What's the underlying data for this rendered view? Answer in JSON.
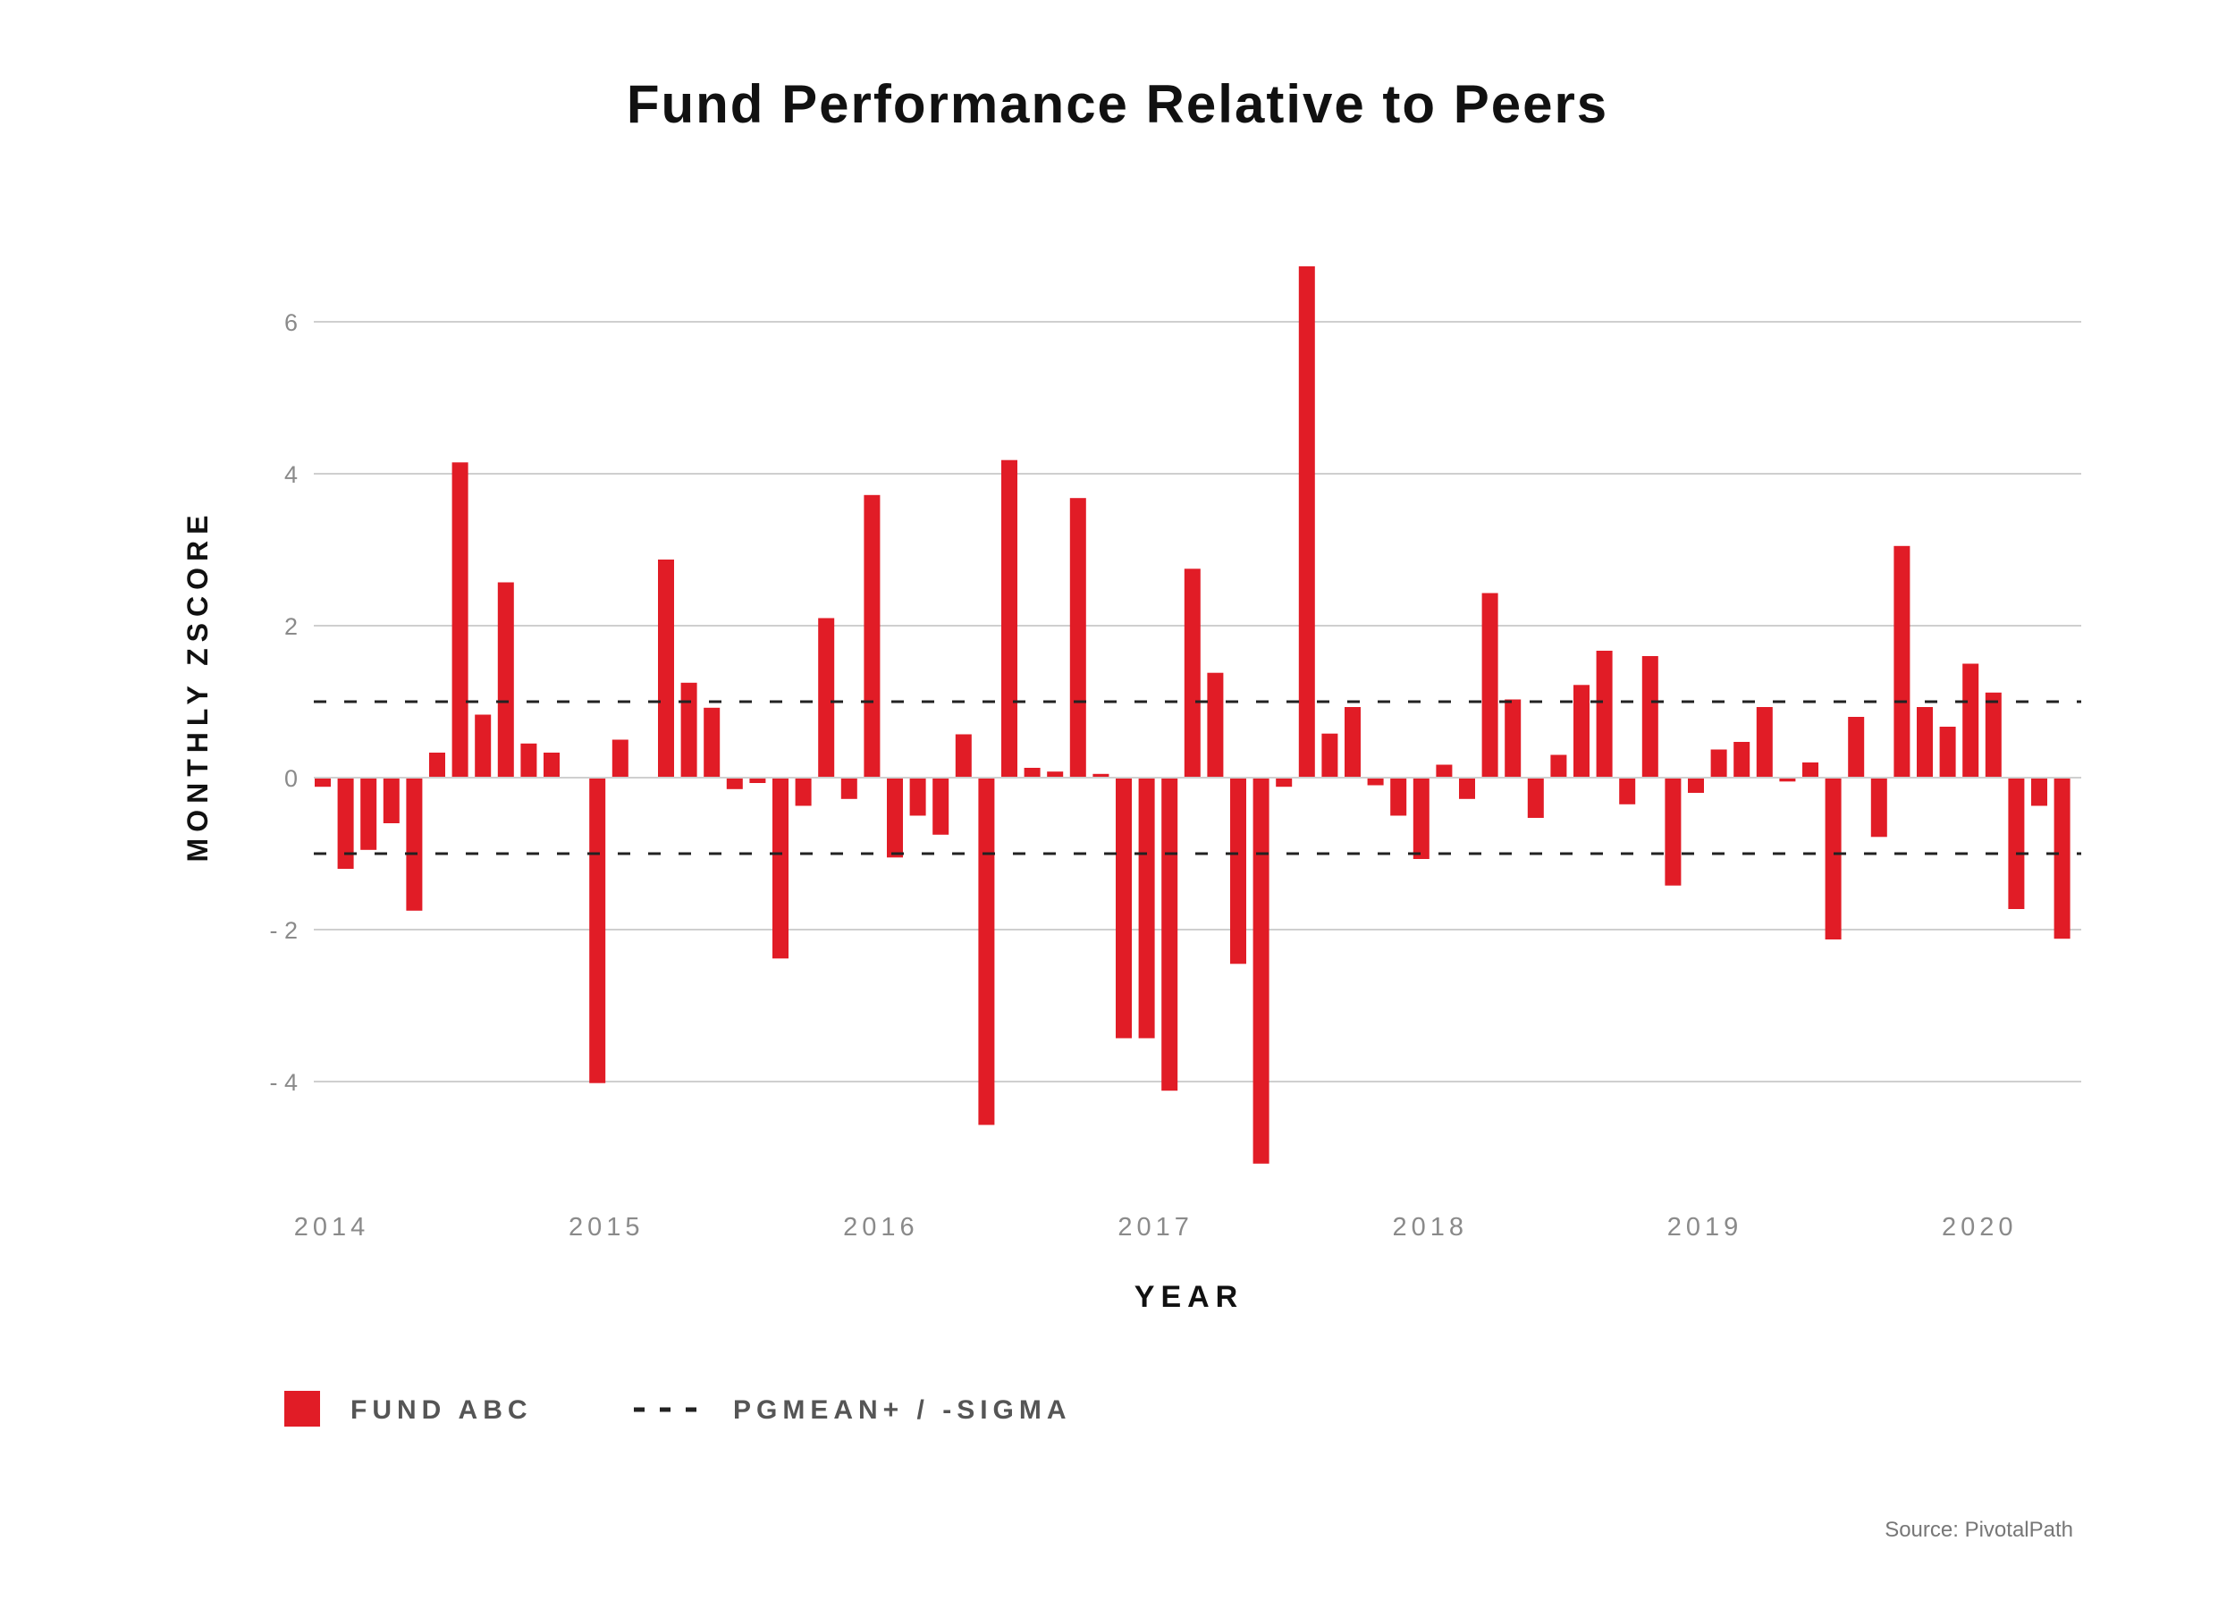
{
  "chart_data": {
    "type": "bar",
    "title": "Fund Performance Relative to Peers",
    "xlabel": "YEAR",
    "ylabel": "MONTHLY ZSCORE",
    "ylim": [
      -5.5,
      7.5
    ],
    "yticks": [
      6,
      4,
      2,
      0,
      -2,
      -4
    ],
    "ytick_labels": [
      "6",
      "4",
      "2",
      "0",
      "- 2",
      "- 4"
    ],
    "x_start": "2014-01",
    "xtick_labels": [
      "2014",
      "2015",
      "2016",
      "2017",
      "2018",
      "2019",
      "2020"
    ],
    "grid": true,
    "legend_position": "bottom-left",
    "series": [
      {
        "name": "FUND ABC",
        "color": "#e11c26",
        "values": [
          -0.12,
          -1.2,
          -0.95,
          -0.6,
          -1.75,
          0.33,
          4.15,
          0.83,
          2.57,
          0.45,
          0.33,
          0,
          -4.02,
          0.5,
          0,
          2.87,
          1.25,
          0.92,
          -0.15,
          -0.07,
          -2.38,
          -0.37,
          2.1,
          -0.28,
          3.72,
          -1.05,
          -0.5,
          -0.75,
          0.57,
          -4.57,
          4.18,
          0.13,
          0.08,
          3.68,
          0.05,
          -3.43,
          -3.43,
          -4.12,
          2.75,
          1.38,
          -2.45,
          -5.08,
          -0.12,
          6.73,
          0.58,
          0.93,
          -0.1,
          -0.5,
          -1.07,
          0.17,
          -0.28,
          2.43,
          1.03,
          -0.53,
          0.3,
          1.22,
          1.67,
          -0.35,
          1.6,
          -1.42,
          -0.2,
          0.37,
          0.47,
          0.93,
          -0.05,
          0.2,
          -2.13,
          0.8,
          -0.78,
          3.05,
          0.93,
          0.67,
          1.5,
          1.12,
          -1.73,
          -0.37,
          -2.12
        ]
      }
    ],
    "reference_lines": {
      "name": "PGMEAN+ / -SIGMA",
      "values": [
        1,
        -1
      ],
      "color": "#222222",
      "style": "dashed"
    },
    "source": "Source: PivotalPath"
  }
}
